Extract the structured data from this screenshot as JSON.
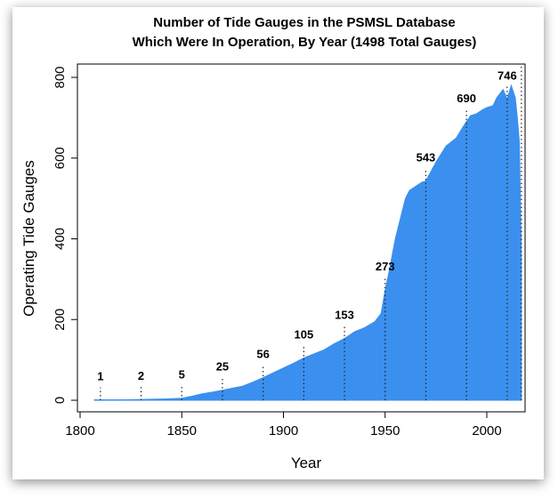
{
  "chart_data": {
    "type": "area",
    "title_lines": [
      "Number of Tide Gauges in the PSMSL Database",
      "Which Were In Operation, By Year (1498 Total Gauges)"
    ],
    "xlabel": "Year",
    "ylabel": "Operating Tide Gauges",
    "xlim": [
      1800,
      2018
    ],
    "ylim": [
      0,
      800
    ],
    "x_ticks": [
      1800,
      1850,
      1900,
      1950,
      2000
    ],
    "y_ticks": [
      0,
      200,
      400,
      600,
      800
    ],
    "grid": false,
    "fill_color": "#3b8fee",
    "series": [
      {
        "x": [
          1807,
          1810,
          1820,
          1830,
          1840,
          1845,
          1850,
          1855,
          1860,
          1865,
          1870,
          1875,
          1880,
          1885,
          1890,
          1895,
          1900,
          1905,
          1910,
          1915,
          1920,
          1925,
          1930,
          1935,
          1940,
          1945,
          1948,
          1950,
          1952,
          1955,
          1958,
          1960,
          1962,
          1965,
          1968,
          1970,
          1975,
          1980,
          1985,
          1988,
          1990,
          1992,
          1995,
          1998,
          2000,
          2003,
          2005,
          2008,
          2010,
          2012,
          2014,
          2015,
          2016,
          2017
        ],
        "y": [
          1,
          1,
          1,
          2,
          3,
          4,
          5,
          10,
          16,
          20,
          25,
          30,
          35,
          45,
          56,
          68,
          80,
          92,
          105,
          115,
          125,
          140,
          153,
          170,
          180,
          195,
          215,
          273,
          320,
          400,
          460,
          500,
          520,
          530,
          540,
          543,
          590,
          630,
          650,
          675,
          690,
          705,
          710,
          720,
          725,
          730,
          750,
          770,
          746,
          780,
          750,
          700,
          640,
          350
        ]
      }
    ],
    "annotations": [
      {
        "year": 1810,
        "label": "1"
      },
      {
        "year": 1830,
        "label": "2"
      },
      {
        "year": 1850,
        "label": "5"
      },
      {
        "year": 1870,
        "label": "25"
      },
      {
        "year": 1890,
        "label": "56"
      },
      {
        "year": 1910,
        "label": "105"
      },
      {
        "year": 1930,
        "label": "153"
      },
      {
        "year": 1950,
        "label": "273"
      },
      {
        "year": 1970,
        "label": "543"
      },
      {
        "year": 1990,
        "label": "690"
      },
      {
        "year": 2010,
        "label": "746"
      },
      {
        "year": 2017,
        "label": ""
      }
    ]
  }
}
